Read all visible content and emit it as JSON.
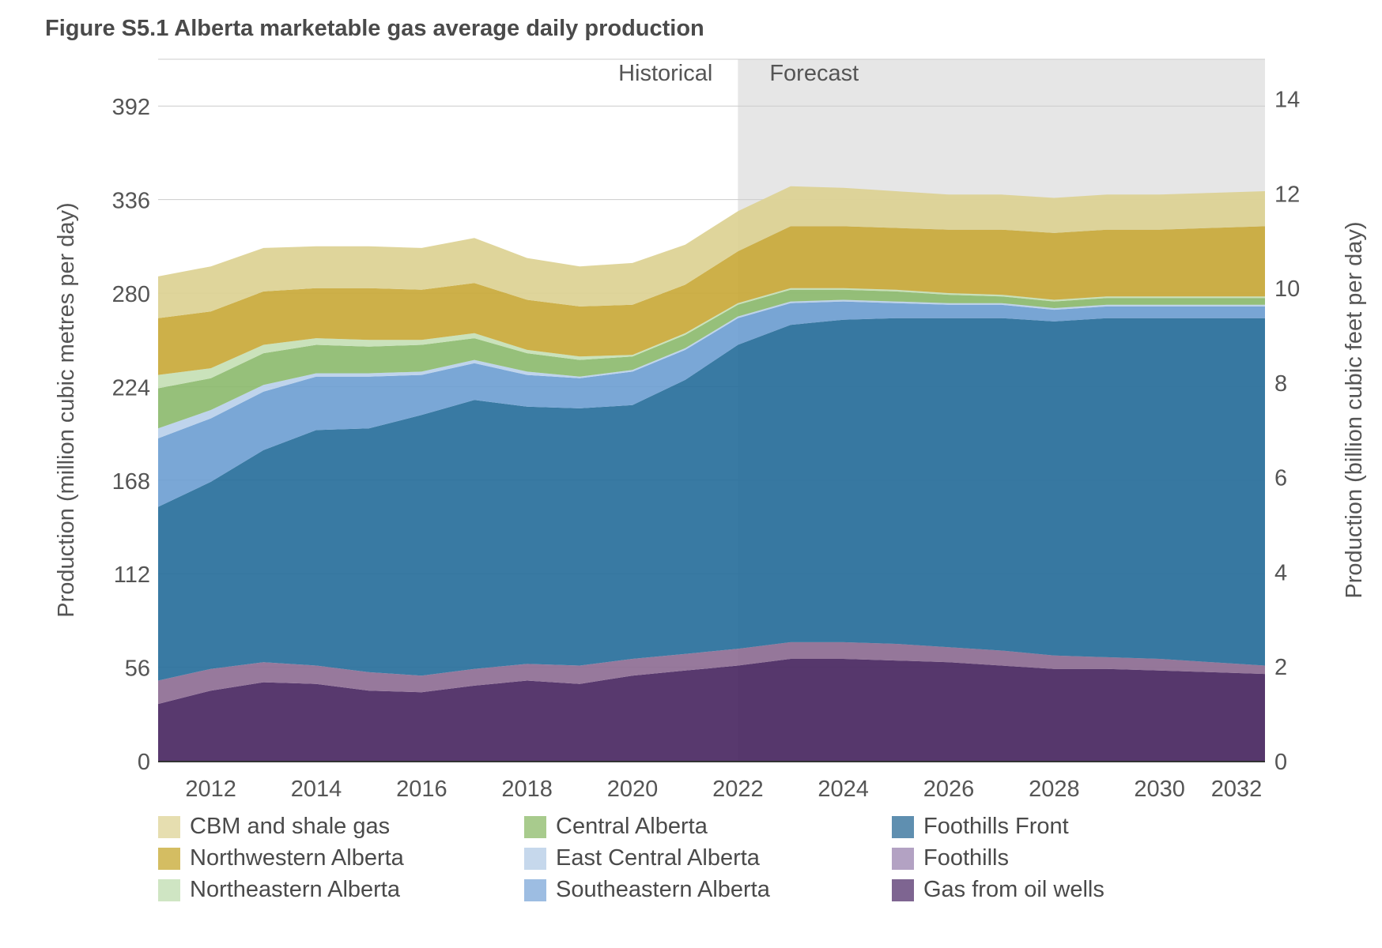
{
  "figure_title": "Figure S5.1  Alberta marketable gas average daily production",
  "chart_data": {
    "type": "area",
    "stacked": true,
    "title": "Figure S5.1  Alberta marketable gas average daily production",
    "x": [
      2011,
      2012,
      2013,
      2014,
      2015,
      2016,
      2017,
      2018,
      2019,
      2020,
      2021,
      2022,
      2023,
      2024,
      2025,
      2026,
      2027,
      2028,
      2029,
      2030,
      2031,
      2032
    ],
    "xlim": [
      2011,
      2032
    ],
    "x_ticks": [
      "2012",
      "2014",
      "2016",
      "2018",
      "2020",
      "2022",
      "2024",
      "2026",
      "2028",
      "2030",
      "2032"
    ],
    "ylabel": "Production (million cubic metres per day)",
    "ylim": [
      0,
      420
    ],
    "y_ticks": [
      0,
      56,
      112,
      168,
      224,
      280,
      336,
      392
    ],
    "y2label": "Production (billion cubic feet per day)",
    "y2lim": [
      0,
      14.83
    ],
    "y2_ticks": [
      0,
      2,
      4,
      6,
      8,
      10,
      12,
      14
    ],
    "grid": true,
    "shaded_region": {
      "from": 2022,
      "to": 2032,
      "color": "#e6e6e6"
    },
    "region_labels": {
      "historical": "Historical",
      "forecast": "Forecast"
    },
    "legend_position": "bottom",
    "series": [
      {
        "name": "Gas from oil wells",
        "color": "#4a2862",
        "legend_color": "#7e6591",
        "values": [
          34,
          42,
          47,
          46,
          42,
          41,
          45,
          48,
          46,
          51,
          54,
          57,
          61,
          61,
          60,
          59,
          57,
          55,
          55,
          54,
          53,
          52
        ]
      },
      {
        "name": "Foothills",
        "color": "#8e6e94",
        "legend_color": "#b3a2c3",
        "values": [
          14,
          13,
          12,
          11,
          11,
          10,
          10,
          10,
          11,
          10,
          10,
          10,
          10,
          10,
          10,
          9,
          9,
          8,
          7,
          7,
          6,
          5
        ]
      },
      {
        "name": "Foothills Front",
        "color": "#286f9b",
        "legend_color": "#5f8fb0",
        "values": [
          104,
          112,
          127,
          141,
          146,
          156,
          161,
          154,
          154,
          152,
          164,
          182,
          190,
          193,
          195,
          197,
          199,
          200,
          203,
          204,
          206,
          208
        ]
      },
      {
        "name": "Southeastern Alberta",
        "color": "#6f9fd2",
        "legend_color": "#9dbde2",
        "values": [
          41,
          38,
          35,
          32,
          31,
          24,
          22,
          19,
          18,
          20,
          18,
          16,
          13,
          11,
          9,
          8,
          8,
          7,
          7,
          7,
          7,
          7
        ]
      },
      {
        "name": "East Central Alberta",
        "color": "#bad0ea",
        "legend_color": "#c6d8ec",
        "values": [
          6,
          5,
          4,
          2,
          2,
          2,
          2,
          2,
          1,
          1,
          1,
          1,
          1,
          1,
          1,
          1,
          1,
          1,
          1,
          1,
          1,
          1
        ]
      },
      {
        "name": "Central Alberta",
        "color": "#8dbb6f",
        "legend_color": "#a8cb8d",
        "values": [
          24,
          19,
          19,
          17,
          16,
          16,
          13,
          11,
          10,
          8,
          8,
          7,
          7,
          6,
          6,
          5,
          4,
          4,
          4,
          4,
          4,
          4
        ]
      },
      {
        "name": "Northeastern Alberta",
        "color": "#c5dfb5",
        "legend_color": "#cfe5c3",
        "values": [
          8,
          6,
          5,
          4,
          4,
          3,
          3,
          2,
          2,
          1,
          1,
          1,
          1,
          1,
          1,
          1,
          1,
          1,
          1,
          1,
          1,
          1
        ]
      },
      {
        "name": "Northwestern Alberta",
        "color": "#c9a93a",
        "legend_color": "#d4bd62",
        "values": [
          34,
          34,
          32,
          30,
          31,
          30,
          30,
          30,
          30,
          30,
          29,
          31,
          37,
          37,
          37,
          38,
          39,
          40,
          40,
          40,
          41,
          42
        ]
      },
      {
        "name": "CBM and shale gas",
        "color": "#dcd192",
        "legend_color": "#e6deb0",
        "values": [
          25,
          27,
          26,
          25,
          25,
          25,
          27,
          25,
          24,
          25,
          24,
          24,
          24,
          23,
          22,
          21,
          21,
          21,
          21,
          21,
          21,
          21
        ]
      }
    ]
  },
  "legend": [
    {
      "label": "CBM and shale gas",
      "color": "#e6deb0"
    },
    {
      "label": "Northwestern Alberta",
      "color": "#d4bd62"
    },
    {
      "label": "Northeastern Alberta",
      "color": "#cfe5c3"
    },
    {
      "label": "Central Alberta",
      "color": "#a8cb8d"
    },
    {
      "label": "East Central Alberta",
      "color": "#c6d8ec"
    },
    {
      "label": "Southeastern Alberta",
      "color": "#9dbde2"
    },
    {
      "label": "Foothills Front",
      "color": "#5f8fb0"
    },
    {
      "label": "Foothills",
      "color": "#b3a2c3"
    },
    {
      "label": "Gas from oil wells",
      "color": "#7e6591"
    }
  ]
}
